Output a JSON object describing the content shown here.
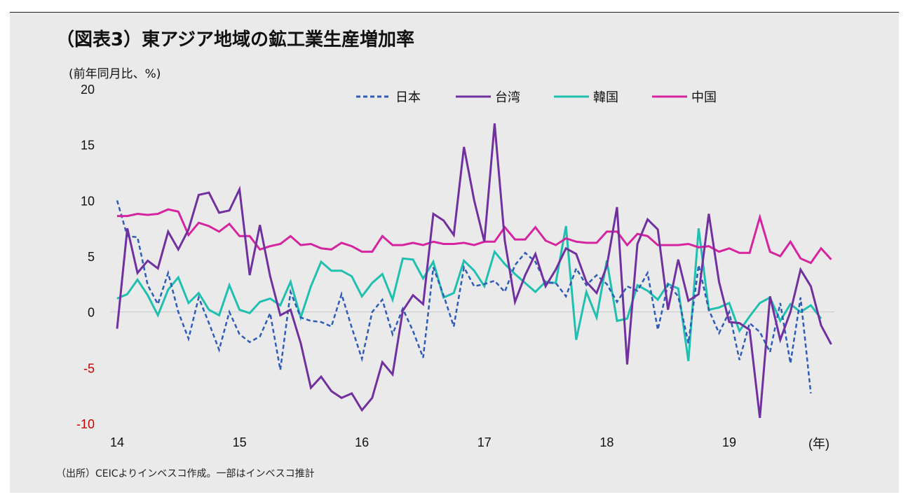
{
  "header": {
    "title": "（図表3）東アジア地域の鉱工業生産増加率",
    "unit": "(前年同月比、%)"
  },
  "footer": {
    "source": "（出所）CEICよりインベスコ作成。一部はインベスコ推計"
  },
  "colors": {
    "japan": "#2e5cb8",
    "taiwan": "#7030a0",
    "korea": "#20c0b0",
    "china": "#d6249f",
    "negative_tick": "#cc0000",
    "zero_line": "#c8c8c8"
  },
  "chart_data": {
    "type": "line",
    "title": "（図表3）東アジア地域の鉱工業生産増加率",
    "ylabel": "(前年同月比、%)",
    "xlabel": "(年)",
    "ylim": [
      -10,
      20
    ],
    "yticks": [
      "20",
      "15",
      "10",
      "5",
      "0",
      "-5",
      "-10"
    ],
    "ytick_values": [
      20,
      15,
      10,
      5,
      0,
      -5,
      -10
    ],
    "xticks": [
      "14",
      "15",
      "16",
      "17",
      "18",
      "19"
    ],
    "xtick_months": [
      0,
      12,
      24,
      36,
      48,
      60
    ],
    "x_unit": "(年)",
    "grid": false,
    "legend_position": "top",
    "months": 71,
    "series": [
      {
        "name": "日本",
        "style": "dashed",
        "values": [
          10.0,
          6.8,
          6.7,
          2.4,
          0.7,
          3.5,
          0.0,
          -2.4,
          1.3,
          -1.0,
          -3.4,
          0.0,
          -2.0,
          -2.7,
          -2.2,
          -0.1,
          -5.2,
          1.8,
          -0.5,
          -0.8,
          -0.9,
          -1.3,
          1.6,
          -1.4,
          -4.2,
          0.0,
          1.1,
          -2.0,
          0.3,
          -1.7,
          -4.1,
          4.0,
          1.5,
          -1.3,
          4.0,
          2.3,
          2.5,
          2.8,
          1.8,
          4.2,
          5.3,
          4.5,
          2.6,
          2.6,
          1.4,
          3.9,
          2.4,
          3.3,
          2.5,
          0.9,
          2.3,
          1.9,
          3.5,
          -1.6,
          2.5,
          1.4,
          -2.8,
          4.2,
          0.2,
          -1.9,
          0.0,
          -4.3,
          -1.0,
          -1.8,
          -3.6,
          0.8,
          -4.6,
          1.3,
          -7.3
        ]
      },
      {
        "name": "台湾",
        "style": "solid",
        "values": [
          -1.5,
          7.5,
          3.5,
          4.6,
          3.9,
          7.2,
          5.6,
          7.4,
          10.5,
          10.7,
          8.9,
          9.1,
          11.0,
          3.3,
          7.8,
          3.2,
          -0.3,
          0.2,
          -2.8,
          -6.8,
          -5.8,
          -7.1,
          -7.7,
          -7.3,
          -8.8,
          -7.7,
          -4.5,
          -5.6,
          0.1,
          1.5,
          0.7,
          8.8,
          8.2,
          6.9,
          14.8,
          10.0,
          6.3,
          16.9,
          6.4,
          0.9,
          3.3,
          5.2,
          2.3,
          3.8,
          5.7,
          5.2,
          2.7,
          1.7,
          4.1,
          9.4,
          -4.7,
          6.1,
          8.3,
          7.4,
          0.2,
          4.7,
          1.0,
          1.6,
          8.8,
          2.7,
          -0.9,
          -1.0,
          -1.6,
          -9.5,
          1.4,
          -2.5,
          0.0,
          3.8,
          2.3,
          -1.2,
          -2.9
        ]
      },
      {
        "name": "韓国",
        "style": "solid",
        "values": [
          1.2,
          1.6,
          2.9,
          1.5,
          -0.3,
          2.0,
          3.1,
          0.8,
          1.7,
          0.2,
          -0.3,
          2.4,
          0.2,
          -0.1,
          0.9,
          1.2,
          0.6,
          2.7,
          -0.5,
          2.3,
          4.5,
          3.7,
          3.7,
          3.2,
          1.4,
          2.6,
          3.4,
          1.1,
          4.8,
          4.7,
          3.0,
          4.5,
          1.3,
          1.7,
          4.6,
          3.7,
          2.3,
          5.4,
          4.3,
          3.4,
          2.6,
          1.8,
          2.7,
          2.6,
          7.7,
          -2.5,
          1.8,
          -0.5,
          4.6,
          -0.8,
          -0.6,
          2.4,
          1.9,
          1.1,
          2.5,
          2.1,
          -4.4,
          7.5,
          0.2,
          0.4,
          0.8,
          -1.7,
          -0.4,
          0.8,
          1.3,
          -0.8,
          0.7,
          0.0,
          0.6,
          -0.6
        ]
      },
      {
        "name": "中国",
        "style": "solid",
        "values": [
          8.6,
          8.6,
          8.8,
          8.7,
          8.8,
          9.2,
          9.0,
          6.9,
          8.0,
          7.7,
          7.2,
          7.9,
          6.8,
          6.8,
          5.6,
          5.9,
          6.1,
          6.8,
          6.0,
          6.1,
          5.7,
          5.6,
          6.2,
          5.9,
          5.4,
          5.4,
          6.8,
          6.0,
          6.0,
          6.2,
          6.0,
          6.3,
          6.1,
          6.1,
          6.2,
          6.0,
          6.3,
          6.3,
          7.6,
          6.5,
          6.5,
          7.6,
          6.4,
          6.0,
          6.6,
          6.3,
          6.2,
          6.2,
          7.2,
          7.2,
          6.0,
          7.0,
          6.8,
          6.0,
          6.0,
          6.0,
          6.1,
          5.8,
          5.9,
          5.4,
          5.7,
          5.3,
          5.3,
          8.5,
          5.4,
          5.0,
          6.3,
          4.8,
          4.4,
          5.7,
          4.7
        ]
      }
    ]
  }
}
